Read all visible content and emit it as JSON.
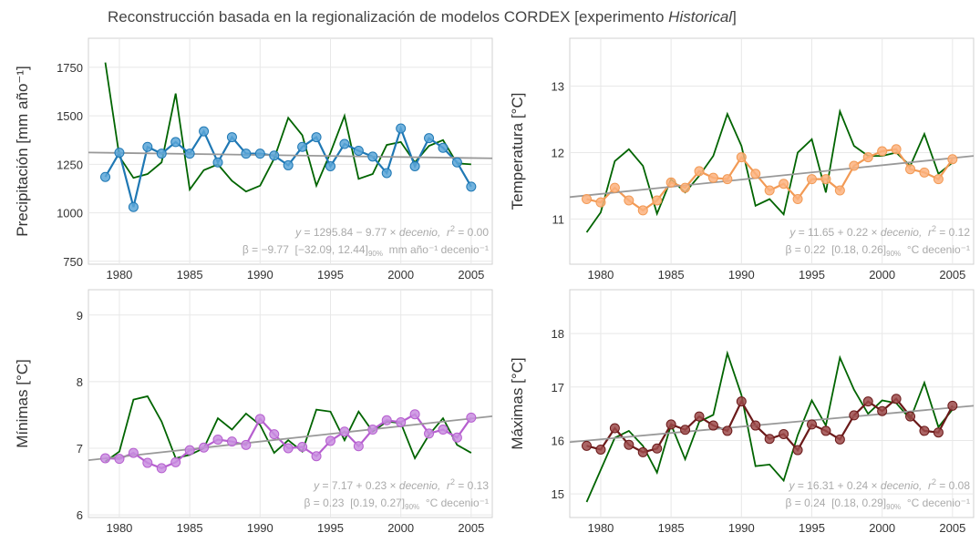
{
  "title": {
    "pre": "Reconstrucción basada en la regionalización de modelos CORDEX [experimento ",
    "em": "Historical",
    "post": "]"
  },
  "chart_data": [
    {
      "type": "line",
      "ylabel": "Precipitación [mm año⁻¹]",
      "xlim": [
        1977.8,
        2006.5
      ],
      "ylim": [
        735,
        1900
      ],
      "xticks": [
        1980,
        1985,
        1990,
        1995,
        2000,
        2005
      ],
      "yticks": [
        750,
        1000,
        1250,
        1500,
        1750
      ],
      "grid": true,
      "x": [
        1979,
        1980,
        1981,
        1982,
        1983,
        1984,
        1985,
        1986,
        1987,
        1988,
        1989,
        1990,
        1991,
        1992,
        1993,
        1994,
        1995,
        1996,
        1997,
        1998,
        1999,
        2000,
        2001,
        2002,
        2003,
        2004,
        2005
      ],
      "series": [
        {
          "color": "#006400",
          "values": [
            1775,
            1290,
            1180,
            1200,
            1260,
            1615,
            1120,
            1220,
            1250,
            1165,
            1110,
            1140,
            1280,
            1490,
            1400,
            1140,
            1310,
            1500,
            1175,
            1200,
            1350,
            1365,
            1260,
            1345,
            1375,
            1255,
            1250
          ]
        },
        {
          "color": "#1f78b4",
          "marker_color": "#5aa6d8",
          "values": [
            1185,
            1310,
            1030,
            1340,
            1305,
            1365,
            1305,
            1420,
            1260,
            1390,
            1305,
            1305,
            1295,
            1245,
            1340,
            1390,
            1240,
            1355,
            1320,
            1290,
            1205,
            1435,
            1240,
            1385,
            1335,
            1260,
            1135
          ]
        }
      ],
      "trend": {
        "color": "#999999",
        "x": [
          1977.8,
          2006.5
        ],
        "values": [
          1311,
          1281
        ]
      },
      "equation": {
        "lhs": "y",
        "rhs": " = 1295.84 − 9.77 × ",
        "var": "decenio,",
        "stat": "  r",
        "stat_exp": "2",
        "stat_value": " = 0.00"
      },
      "beta": {
        "text": "β = −9.77  [−32.09, 12.44]",
        "sub": "90%",
        "units": "  mm año⁻¹ decenio⁻¹"
      }
    },
    {
      "type": "line",
      "ylabel": "Temperatura [°C]",
      "xlim": [
        1977.8,
        2006.5
      ],
      "ylim": [
        10.32,
        13.72
      ],
      "xticks": [
        1980,
        1985,
        1990,
        1995,
        2000,
        2005
      ],
      "yticks": [
        11,
        12,
        13
      ],
      "grid": true,
      "x": [
        1979,
        1980,
        1981,
        1982,
        1983,
        1984,
        1985,
        1986,
        1987,
        1988,
        1989,
        1990,
        1991,
        1992,
        1993,
        1994,
        1995,
        1996,
        1997,
        1998,
        1999,
        2000,
        2001,
        2002,
        2003,
        2004,
        2005
      ],
      "series": [
        {
          "color": "#006400",
          "values": [
            10.8,
            11.1,
            11.87,
            12.05,
            11.8,
            11.08,
            11.6,
            11.4,
            11.65,
            11.95,
            12.58,
            12.1,
            11.2,
            11.3,
            11.07,
            12.0,
            12.2,
            11.4,
            12.62,
            12.1,
            11.95,
            11.95,
            12.0,
            11.8,
            12.28,
            11.68,
            11.85
          ]
        },
        {
          "color": "#f29a55",
          "marker_color": "#fbb27e",
          "values": [
            11.3,
            11.25,
            11.47,
            11.28,
            11.13,
            11.28,
            11.55,
            11.47,
            11.72,
            11.62,
            11.6,
            11.93,
            11.68,
            11.43,
            11.53,
            11.3,
            11.6,
            11.6,
            11.43,
            11.8,
            11.93,
            12.02,
            12.05,
            11.75,
            11.7,
            11.6,
            11.9
          ]
        }
      ],
      "trend": {
        "color": "#999999",
        "x": [
          1977.8,
          2006.5
        ],
        "values": [
          11.33,
          11.95
        ]
      },
      "equation": {
        "lhs": "y",
        "rhs": " = 11.65 + 0.22 × ",
        "var": "decenio,",
        "stat": "  r",
        "stat_exp": "2",
        "stat_value": " = 0.12"
      },
      "beta": {
        "text": "β = 0.22  [0.18, 0.26]",
        "sub": "90%",
        "units": "  °C decenio⁻¹"
      }
    },
    {
      "type": "line",
      "ylabel": "Mínimas [°C]",
      "xlim": [
        1977.8,
        2006.5
      ],
      "ylim": [
        5.96,
        9.38
      ],
      "xticks": [
        1980,
        1985,
        1990,
        1995,
        2000,
        2005
      ],
      "yticks": [
        6,
        7,
        8,
        9
      ],
      "grid": true,
      "x": [
        1979,
        1980,
        1981,
        1982,
        1983,
        1984,
        1985,
        1986,
        1987,
        1988,
        1989,
        1990,
        1991,
        1992,
        1993,
        1994,
        1995,
        1996,
        1997,
        1998,
        1999,
        2000,
        2001,
        2002,
        2003,
        2004,
        2005
      ],
      "series": [
        {
          "color": "#006400",
          "values": [
            6.8,
            6.95,
            7.73,
            7.78,
            7.4,
            6.85,
            6.9,
            7.0,
            7.45,
            7.28,
            7.52,
            7.35,
            6.93,
            7.12,
            6.95,
            7.58,
            7.55,
            7.12,
            7.55,
            7.25,
            7.4,
            7.38,
            6.85,
            7.2,
            7.45,
            7.05,
            6.93
          ]
        },
        {
          "color": "#b65fcf",
          "marker_color": "#c98ee0",
          "values": [
            6.85,
            6.84,
            6.93,
            6.78,
            6.7,
            6.79,
            6.97,
            7.01,
            7.13,
            7.1,
            7.05,
            7.44,
            7.21,
            7.0,
            7.02,
            6.88,
            7.11,
            7.25,
            7.03,
            7.28,
            7.42,
            7.39,
            7.51,
            7.22,
            7.28,
            7.16,
            7.46
          ]
        }
      ],
      "trend": {
        "color": "#999999",
        "x": [
          1977.8,
          2006.5
        ],
        "values": [
          6.82,
          7.48
        ]
      },
      "equation": {
        "lhs": "y",
        "rhs": " = 7.17 + 0.23 × ",
        "var": "decenio,",
        "stat": "  r",
        "stat_exp": "2",
        "stat_value": " = 0.13"
      },
      "beta": {
        "text": "β = 0.23  [0.19, 0.27]",
        "sub": "90%",
        "units": "  °C decenio⁻¹"
      }
    },
    {
      "type": "line",
      "ylabel": "Máximas [°C]",
      "xlim": [
        1977.8,
        2006.5
      ],
      "ylim": [
        14.56,
        18.82
      ],
      "xticks": [
        1980,
        1985,
        1990,
        1995,
        2000,
        2005
      ],
      "yticks": [
        15,
        16,
        17,
        18
      ],
      "grid": true,
      "x": [
        1979,
        1980,
        1981,
        1982,
        1983,
        1984,
        1985,
        1986,
        1987,
        1988,
        1989,
        1990,
        1991,
        1992,
        1993,
        1994,
        1995,
        1996,
        1997,
        1998,
        1999,
        2000,
        2001,
        2002,
        2003,
        2004,
        2005
      ],
      "series": [
        {
          "color": "#006400",
          "values": [
            14.85,
            15.45,
            16.05,
            16.18,
            15.9,
            15.4,
            16.3,
            15.65,
            16.35,
            16.48,
            17.63,
            16.85,
            15.52,
            15.55,
            15.25,
            16.1,
            16.75,
            16.28,
            17.55,
            16.95,
            16.5,
            16.75,
            16.7,
            16.4,
            17.08,
            16.25,
            16.58
          ]
        },
        {
          "color": "#6b1a1a",
          "marker_color": "#9c4a4a",
          "values": [
            15.9,
            15.83,
            16.23,
            15.92,
            15.78,
            15.85,
            16.3,
            16.2,
            16.45,
            16.28,
            16.18,
            16.73,
            16.28,
            16.03,
            16.12,
            15.82,
            16.3,
            16.18,
            16.02,
            16.47,
            16.73,
            16.55,
            16.78,
            16.45,
            16.18,
            16.15,
            16.65
          ]
        }
      ],
      "trend": {
        "color": "#999999",
        "x": [
          1977.8,
          2006.5
        ],
        "values": [
          15.97,
          16.65
        ]
      },
      "equation": {
        "lhs": "y",
        "rhs": " = 16.31 + 0.24 × ",
        "var": "decenio,",
        "stat": "  r",
        "stat_exp": "2",
        "stat_value": " = 0.08"
      },
      "beta": {
        "text": "β = 0.24  [0.18, 0.29]",
        "sub": "90%",
        "units": "  °C decenio⁻¹"
      }
    }
  ]
}
